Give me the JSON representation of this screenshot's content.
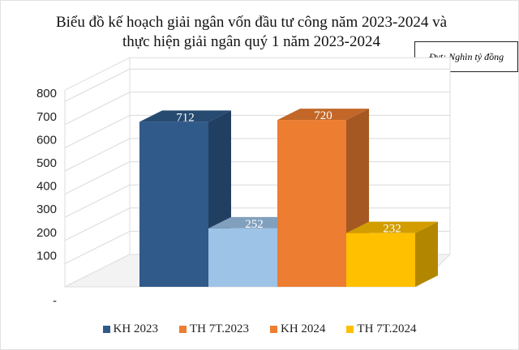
{
  "chart_data": {
    "type": "bar",
    "title_line1": "Biểu đồ kế hoạch giải ngân vốn đầu tư công năm 2023-2024  và",
    "title_line2": "thực hiện giải ngân quý 1 năm 2023-2024",
    "unit_note": "Đvt: Nghìn tỷ đồng",
    "yticks": [
      "-",
      "100",
      "200",
      "300",
      "400",
      "500",
      "600",
      "700",
      "800"
    ],
    "ylim": [
      0,
      800
    ],
    "grid": true,
    "style": "3d-column",
    "legend_position": "bottom",
    "series": [
      {
        "name": "KH 2023",
        "value": 712,
        "color": "#2F5A8A",
        "legend_color": "#2F5A8A"
      },
      {
        "name": "TH 7T.2023",
        "value": 252,
        "color": "#9DC3E6",
        "legend_color": "#ED7D31"
      },
      {
        "name": "KH 2024",
        "value": 720,
        "color": "#ED7D31",
        "legend_color": "#ED7D31"
      },
      {
        "name": "TH 7T.2024",
        "value": 232,
        "color": "#FFC000",
        "legend_color": "#FFC000"
      }
    ]
  }
}
